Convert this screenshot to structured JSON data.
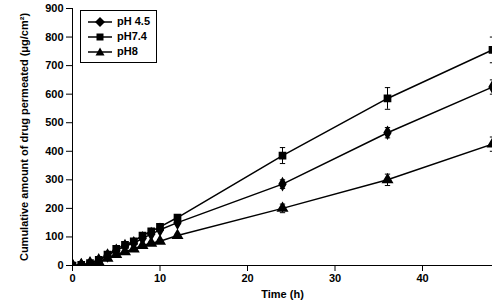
{
  "chart_data": {
    "type": "line",
    "xlabel": "Time (h)",
    "ylabel": "Cumulative amount of drug permeated (μg/cm²)",
    "x": [
      0,
      1,
      2,
      3,
      4,
      5,
      6,
      7,
      8,
      9,
      10,
      12,
      24,
      36,
      48
    ],
    "series": [
      {
        "name": "pH 4.5",
        "color": "#000000",
        "marker": "diamond",
        "line_style": "solid",
        "values": [
          0,
          2,
          8,
          18,
          35,
          52,
          68,
          78,
          95,
          110,
          125,
          150,
          285,
          465,
          625
        ],
        "errors": [
          0,
          0,
          1,
          2,
          3,
          3,
          4,
          4,
          5,
          5,
          6,
          6,
          15,
          18,
          25
        ]
      },
      {
        "name": "pH7.4",
        "color": "#000000",
        "marker": "square",
        "line_style": "solid",
        "values": [
          0,
          2,
          8,
          20,
          38,
          58,
          72,
          85,
          105,
          120,
          135,
          168,
          385,
          585,
          755
        ],
        "errors": [
          0,
          0,
          1,
          2,
          3,
          4,
          4,
          5,
          6,
          6,
          7,
          8,
          28,
          38,
          45
        ]
      },
      {
        "name": "pH8",
        "color": "#000000",
        "marker": "triangle",
        "line_style": "solid",
        "values": [
          0,
          1,
          5,
          12,
          25,
          38,
          48,
          58,
          70,
          78,
          85,
          105,
          200,
          300,
          425
        ],
        "errors": [
          0,
          0,
          1,
          1,
          2,
          3,
          3,
          3,
          4,
          4,
          5,
          6,
          15,
          20,
          25
        ]
      }
    ],
    "xlim": [
      0,
      48
    ],
    "xticks": [
      0,
      10,
      20,
      30,
      40
    ],
    "ylim": [
      0,
      900
    ],
    "yticks": [
      0,
      100,
      200,
      300,
      400,
      500,
      600,
      700,
      800,
      900
    ],
    "grid": false,
    "legend": "top-left"
  }
}
